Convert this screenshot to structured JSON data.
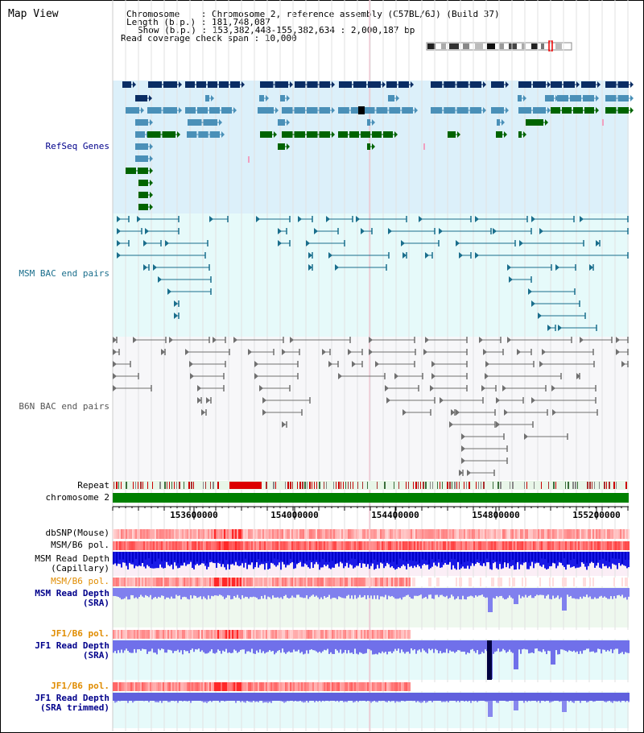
{
  "view_title": "Map View",
  "info": {
    "chromosome_key": "Chromosome",
    "chromosome_value": "Chromosome 2, reference assembly (C57BL/6J) (Build 37)",
    "length_key": "Length (b.p.)",
    "length_value": "181,748,087",
    "show_key": "Show (b.p.)",
    "show_value": "153,382,448-155,382,634 : 2,000,187 bp",
    "span_key": "Read coverage check span",
    "span_value": "10,000"
  },
  "tracks": {
    "refseq": "RefSeq Genes",
    "msm_bac": "MSM BAC end pairs",
    "b6n_bac": "B6N BAC end pairs",
    "repeat": "Repeat",
    "chromosome": "chromosome 2",
    "dbsnp": "dbSNP(Mouse)",
    "msm_b6_pol_1": "MSM/B6 pol.",
    "msm_read_depth_cap_1": "MSM Read Depth",
    "msm_read_depth_cap_2": "(Capillary)",
    "msm_b6_pol_2": "MSM/B6 pol.",
    "msm_read_depth_sra_1": "MSM Read Depth",
    "msm_read_depth_sra_2": "(SRA)",
    "jf1_b6_pol_1": "JF1/B6 pol.",
    "jf1_read_depth_sra_1": "JF1 Read Depth",
    "jf1_read_depth_sra_2": "(SRA)",
    "jf1_b6_pol_2": "JF1/B6 pol.",
    "jf1_read_depth_trim_1": "JF1 Read Depth",
    "jf1_read_depth_trim_2": "(SRA trimmed)"
  },
  "axis": {
    "ticks": [
      "153600000",
      "154000000",
      "154400000",
      "154800000",
      "155200000"
    ]
  },
  "colors": {
    "refseq_bg": "#dcf0fa",
    "bac_bg": "#e6fafa",
    "navy": "#0a2d64",
    "steel": "#4a90b8",
    "green": "#006400",
    "teal": "#1a6e8c",
    "gray": "#707070",
    "chromosome": "#008000",
    "label_blue": "#00008b",
    "label_orange": "#e08c00"
  }
}
